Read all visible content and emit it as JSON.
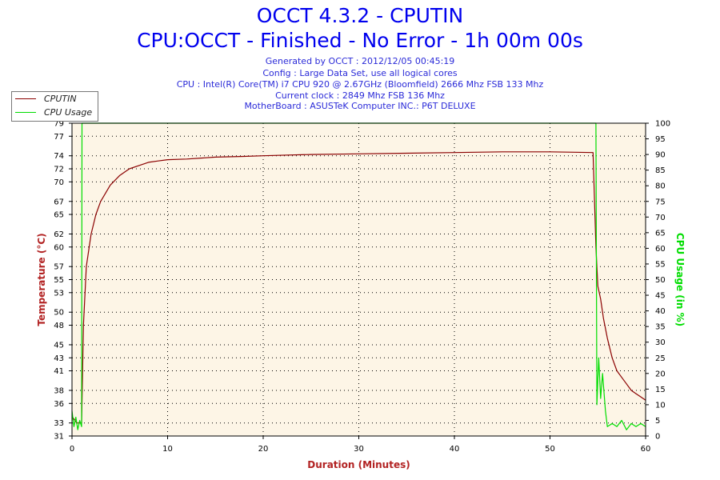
{
  "header": {
    "title_line_1": "OCCT 4.3.2 - CPUTIN",
    "title_line_2": "CPU:OCCT - Finished - No Error - 1h 00m 00s",
    "info_lines": [
      "Generated by OCCT : 2012/12/05 00:45:19",
      "Config : Large Data Set, use all logical cores",
      "CPU : Intel(R) Core(TM) i7 CPU 920 @ 2.67GHz (Bloomfield) 2666 Mhz FSB 133 Mhz",
      "Current clock : 2849 Mhz FSB 136 Mhz",
      "MotherBoard : ASUSTeK Computer INC.: P6T DELUXE"
    ]
  },
  "chart_data": {
    "type": "line",
    "xlabel": "Duration (Minutes)",
    "ylabel_left": "Temperature (°C)",
    "ylabel_right": "CPU Usage (in %)",
    "xlim": [
      0,
      60
    ],
    "ylim_left": [
      31,
      79
    ],
    "ylim_right": [
      0,
      100
    ],
    "x_ticks": [
      0,
      10,
      20,
      30,
      40,
      50,
      60
    ],
    "y_left_ticks": [
      31,
      33,
      36,
      38,
      41,
      43,
      45,
      48,
      50,
      53,
      55,
      57,
      60,
      62,
      65,
      67,
      70,
      72,
      74,
      77,
      79
    ],
    "y_right_ticks": [
      0,
      5,
      10,
      15,
      20,
      25,
      30,
      35,
      40,
      45,
      50,
      55,
      60,
      65,
      70,
      75,
      80,
      85,
      90,
      95,
      100
    ],
    "grid": true,
    "legend_position": "top-left",
    "colors": {
      "temperature": "#8b0000",
      "cpu_usage": "#00dd00",
      "plot_background": "#fdf5e6",
      "left_axis_title": "#b22222",
      "right_axis_title": "#00dd00",
      "x_axis_title": "#b22222"
    },
    "series": [
      {
        "name": "CPUTIN",
        "axis": "left",
        "x": [
          0,
          0.5,
          1,
          1.2,
          1.5,
          2,
          2.5,
          3,
          4,
          5,
          6,
          7,
          8,
          9,
          10,
          12,
          15,
          18,
          20,
          25,
          30,
          35,
          40,
          45,
          50,
          54.5,
          54.8,
          55,
          55.3,
          55.6,
          56,
          56.5,
          57,
          57.5,
          58,
          58.5,
          59,
          59.5,
          60
        ],
        "y": [
          34,
          33,
          33,
          48,
          57,
          62,
          65,
          67,
          69.5,
          71,
          72,
          72.5,
          73,
          73.2,
          73.4,
          73.5,
          73.8,
          73.9,
          74,
          74.2,
          74.3,
          74.4,
          74.5,
          74.6,
          74.6,
          74.5,
          60,
          54,
          52,
          49,
          46,
          43,
          41,
          40,
          39,
          38,
          37.5,
          37,
          36.5
        ]
      },
      {
        "name": "CPU Usage",
        "axis": "right",
        "x": [
          0,
          0.2,
          0.4,
          0.6,
          0.8,
          1.0,
          1.05,
          54.8,
          54.9,
          55.1,
          55.3,
          55.5,
          55.8,
          56,
          56.5,
          57,
          57.5,
          58,
          58.5,
          59,
          59.5,
          60
        ],
        "y": [
          8,
          3,
          6,
          2,
          5,
          3,
          100,
          100,
          10,
          25,
          12,
          20,
          8,
          3,
          4,
          3,
          5,
          2,
          4,
          3,
          4,
          3
        ]
      }
    ]
  }
}
